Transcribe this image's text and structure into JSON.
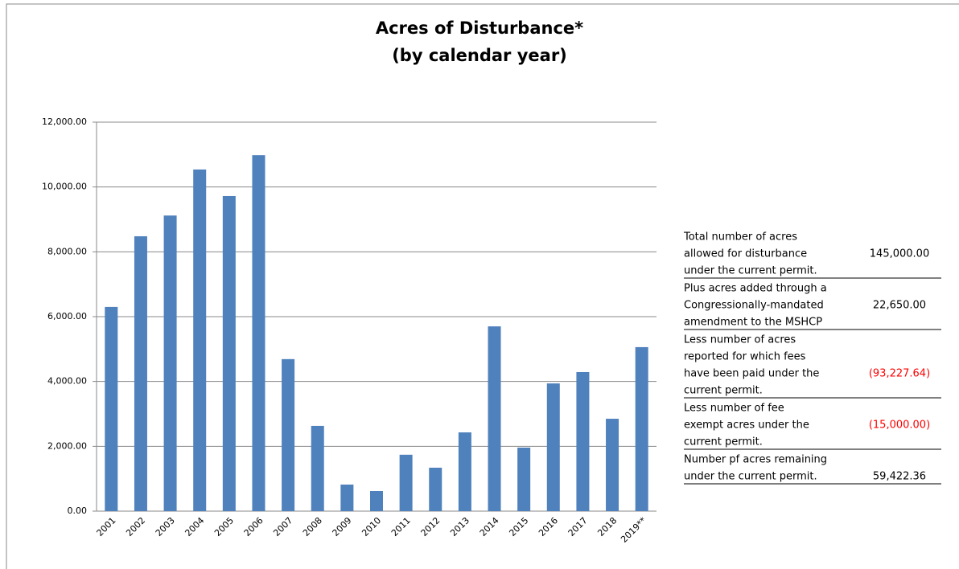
{
  "chart_data": {
    "type": "bar",
    "title": "Acres of Disturbance*",
    "subtitle": "(by calendar year)",
    "categories": [
      "2001",
      "2002",
      "2003",
      "2004",
      "2005",
      "2006",
      "2007",
      "2008",
      "2009",
      "2010",
      "2011",
      "2012",
      "2013",
      "2014",
      "2015",
      "2016",
      "2017",
      "2018",
      "2019**"
    ],
    "values": [
      6300,
      8480,
      9120,
      10540,
      9720,
      10980,
      4690,
      2630,
      820,
      620,
      1740,
      1340,
      2430,
      5700,
      1960,
      3940,
      4290,
      2850,
      5060
    ],
    "color": "#4f81bd",
    "ylim": [
      0,
      12000
    ],
    "yticks": [
      {
        "value": 0,
        "label": "0.00"
      },
      {
        "value": 2000,
        "label": "2,000.00"
      },
      {
        "value": 4000,
        "label": "4,000.00"
      },
      {
        "value": 6000,
        "label": "6,000.00"
      },
      {
        "value": 8000,
        "label": "8,000.00"
      },
      {
        "value": 10000,
        "label": "10,000.00"
      },
      {
        "value": 12000,
        "label": "12,000.00"
      }
    ],
    "grid": true
  },
  "table": {
    "rows": [
      {
        "lines": [
          "Total number of acres",
          "allowed for disturbance",
          "under the current permit."
        ],
        "value": "145,000.00"
      },
      {
        "lines": [
          "Plus acres added through a",
          "Congressionally-mandated",
          "amendment to the MSHCP"
        ],
        "value": "22,650.00"
      },
      {
        "lines": [
          "Less number of acres",
          "reported for which fees",
          "have been paid under the",
          "current permit."
        ],
        "value": "(93,227.64)"
      },
      {
        "lines": [
          "Less number of fee",
          "exempt acres under the",
          "current permit."
        ],
        "value": "(15,000.00)"
      },
      {
        "lines": [
          "Number pf acres remaining",
          "under the current permit."
        ],
        "value": "59,422.36"
      }
    ]
  }
}
